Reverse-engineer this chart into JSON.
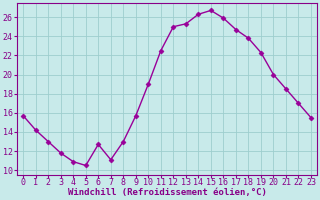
{
  "x": [
    0,
    1,
    2,
    3,
    4,
    5,
    6,
    7,
    8,
    9,
    10,
    11,
    12,
    13,
    14,
    15,
    16,
    17,
    18,
    19,
    20,
    21,
    22,
    23
  ],
  "y": [
    15.7,
    14.2,
    13.0,
    11.8,
    10.9,
    10.5,
    12.7,
    11.1,
    13.0,
    15.7,
    19.0,
    22.5,
    25.0,
    25.3,
    26.3,
    26.7,
    25.9,
    24.7,
    23.8,
    22.3,
    20.0,
    18.5,
    17.0,
    15.5
  ],
  "line_color": "#990099",
  "marker": "D",
  "marker_size": 2.5,
  "bg_color": "#c8eaea",
  "grid_color": "#9ecece",
  "xlabel": "Windchill (Refroidissement éolien,°C)",
  "xlim": [
    -0.5,
    23.5
  ],
  "ylim": [
    9.5,
    27.5
  ],
  "yticks": [
    10,
    12,
    14,
    16,
    18,
    20,
    22,
    24,
    26
  ],
  "xticks": [
    0,
    1,
    2,
    3,
    4,
    5,
    6,
    7,
    8,
    9,
    10,
    11,
    12,
    13,
    14,
    15,
    16,
    17,
    18,
    19,
    20,
    21,
    22,
    23
  ],
  "tick_label_color": "#880088",
  "label_fontsize": 6.5,
  "tick_fontsize": 6.0,
  "linewidth": 1.0
}
